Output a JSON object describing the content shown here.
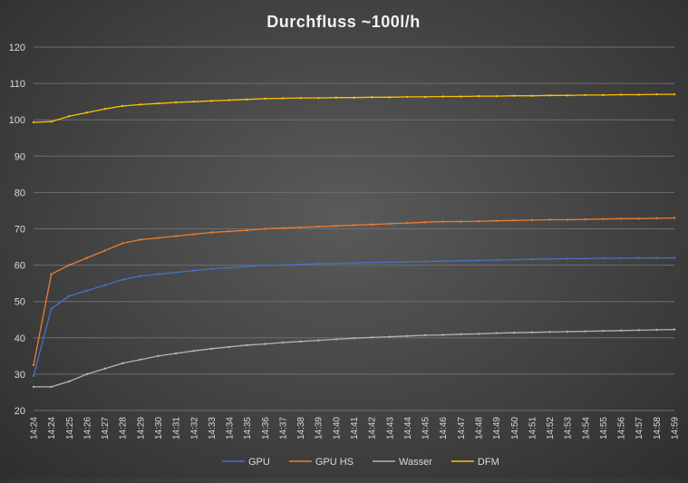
{
  "chart_data": {
    "type": "line",
    "title": "Durchfluss ~100l/h",
    "xlabel": "",
    "ylabel": "",
    "ylim": [
      20,
      120
    ],
    "yticks": [
      20,
      30,
      40,
      50,
      60,
      70,
      80,
      90,
      100,
      110,
      120
    ],
    "grid": "horizontal",
    "legend_position": "bottom",
    "x": [
      "14:24",
      "14:24",
      "14:25",
      "14:26",
      "14:27",
      "14:28",
      "14:29",
      "14:30",
      "14:31",
      "14:32",
      "14:33",
      "14:34",
      "14:35",
      "14:36",
      "14:37",
      "14:38",
      "14:39",
      "14:40",
      "14:41",
      "14:42",
      "14:43",
      "14:44",
      "14:45",
      "14:46",
      "14:47",
      "14:48",
      "14:49",
      "14:50",
      "14:51",
      "14:52",
      "14:53",
      "14:54",
      "14:55",
      "14:56",
      "14:57",
      "14:58",
      "14:59"
    ],
    "series": [
      {
        "name": "GPU",
        "color": "#4472c4",
        "values": [
          29.5,
          48,
          51.5,
          53,
          54.5,
          56,
          57,
          57.5,
          58,
          58.5,
          59,
          59.3,
          59.6,
          60,
          60,
          60.2,
          60.4,
          60.5,
          60.6,
          60.7,
          60.8,
          60.9,
          61,
          61.1,
          61.2,
          61.3,
          61.4,
          61.5,
          61.6,
          61.7,
          61.8,
          61.8,
          61.9,
          61.9,
          62,
          62,
          62
        ]
      },
      {
        "name": "GPU HS",
        "color": "#ed7d31",
        "values": [
          32.5,
          57.5,
          60,
          62,
          64,
          66,
          67,
          67.5,
          68,
          68.5,
          69,
          69.3,
          69.6,
          70,
          70.2,
          70.4,
          70.6,
          70.8,
          71,
          71.2,
          71.4,
          71.6,
          71.8,
          72,
          72,
          72.1,
          72.2,
          72.3,
          72.4,
          72.5,
          72.5,
          72.6,
          72.7,
          72.8,
          72.8,
          72.9,
          73
        ]
      },
      {
        "name": "Wasser",
        "color": "#b4b4b4",
        "values": [
          26.5,
          26.5,
          28,
          30,
          31.5,
          33,
          34,
          35,
          35.7,
          36.4,
          37,
          37.5,
          38,
          38.3,
          38.7,
          39,
          39.3,
          39.6,
          39.9,
          40.1,
          40.3,
          40.5,
          40.7,
          40.8,
          41,
          41.1,
          41.3,
          41.4,
          41.5,
          41.6,
          41.7,
          41.8,
          41.9,
          42,
          42.1,
          42.2,
          42.3
        ]
      },
      {
        "name": "DFM",
        "color": "#ffc000",
        "values": [
          99.3,
          99.5,
          101,
          102,
          103,
          103.8,
          104.2,
          104.5,
          104.8,
          105,
          105.2,
          105.4,
          105.6,
          105.8,
          105.9,
          106,
          106,
          106.1,
          106.1,
          106.2,
          106.2,
          106.3,
          106.3,
          106.4,
          106.4,
          106.5,
          106.5,
          106.6,
          106.6,
          106.7,
          106.7,
          106.8,
          106.8,
          106.9,
          106.9,
          107,
          107
        ]
      }
    ]
  }
}
